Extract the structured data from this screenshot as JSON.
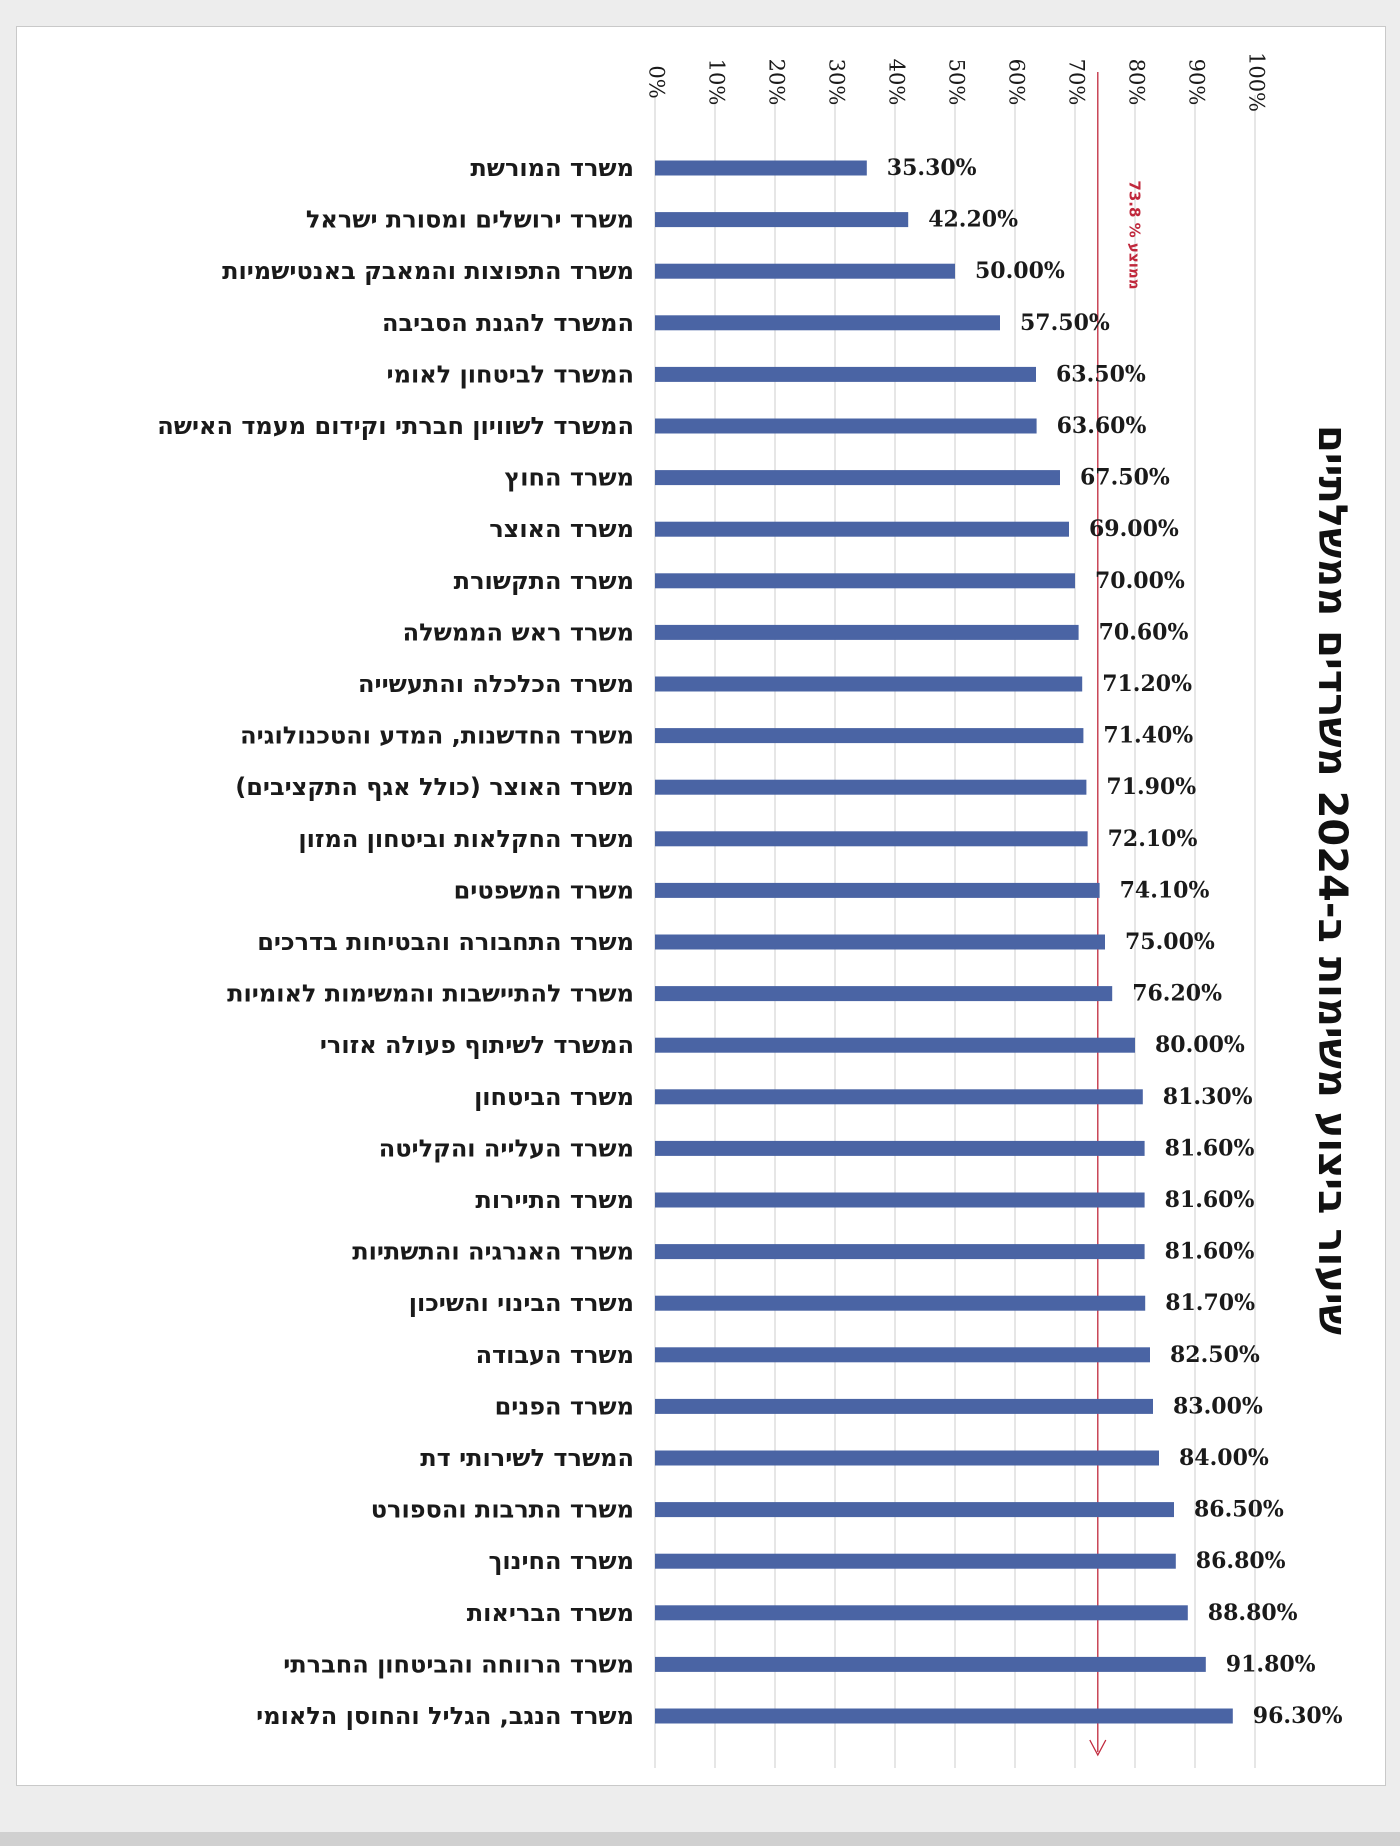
{
  "chart_data": {
    "type": "bar",
    "orientation": "horizontal",
    "title": "שיעור ביצוע משימות ב-2024 משרדים ממשלתיים",
    "average_line": {
      "value": 73.8,
      "label": "ממוצע % 73.8"
    },
    "xlim": [
      0,
      100
    ],
    "ticks": [
      "0%",
      "10%",
      "20%",
      "30%",
      "40%",
      "50%",
      "60%",
      "70%",
      "80%",
      "90%",
      "100%"
    ],
    "grid": true,
    "bar_color": "#4a64a4",
    "average_color": "#c0283c",
    "categories": [
      "משרד המורשת",
      "משרד ירושלים ומסורת ישראל",
      "משרד התפוצות והמאבק באנטישמיות",
      "המשרד להגנת הסביבה",
      "המשרד לביטחון לאומי",
      "המשרד לשוויון חברתי וקידום מעמד האישה",
      "משרד החוץ",
      "משרד האוצר",
      "משרד התקשורת",
      "משרד ראש הממשלה",
      "משרד הכלכלה והתעשייה",
      "משרד החדשנות, המדע והטכנולוגיה",
      "משרד האוצר (כולל אגף התקציבים)",
      "משרד החקלאות וביטחון המזון",
      "משרד המשפטים",
      "משרד התחבורה והבטיחות בדרכים",
      "משרד להתיישבות והמשימות לאומיות",
      "המשרד לשיתוף פעולה אזורי",
      "משרד הביטחון",
      "משרד העלייה והקליטה",
      "משרד התיירות",
      "משרד האנרגיה והתשתיות",
      "משרד הבינוי והשיכון",
      "משרד העבודה",
      "משרד הפנים",
      "המשרד לשירותי דת",
      "משרד התרבות והספורט",
      "משרד החינוך",
      "משרד הבריאות",
      "משרד הרווחה והביטחון החברתי",
      "משרד הנגב, הגליל והחוסן הלאומי"
    ],
    "values": [
      35.3,
      42.2,
      50.0,
      57.5,
      63.5,
      63.6,
      67.5,
      69.0,
      70.0,
      70.6,
      71.2,
      71.4,
      71.9,
      72.1,
      74.1,
      75.0,
      76.2,
      80.0,
      81.3,
      81.6,
      81.6,
      81.6,
      81.7,
      82.5,
      83.0,
      84.0,
      86.5,
      86.8,
      88.8,
      91.8,
      96.3
    ],
    "value_labels": [
      "35.30%",
      "42.20%",
      "50.00%",
      "57.50%",
      "63.50%",
      "63.60%",
      "67.50%",
      "69.00%",
      "70.00%",
      "70.60%",
      "71.20%",
      "71.40%",
      "71.90%",
      "72.10%",
      "74.10%",
      "75.00%",
      "76.20%",
      "80.00%",
      "81.30%",
      "81.60%",
      "81.60%",
      "81.60%",
      "81.70%",
      "82.50%",
      "83.00%",
      "84.00%",
      "86.50%",
      "86.80%",
      "88.80%",
      "91.80%",
      "96.30%"
    ]
  }
}
